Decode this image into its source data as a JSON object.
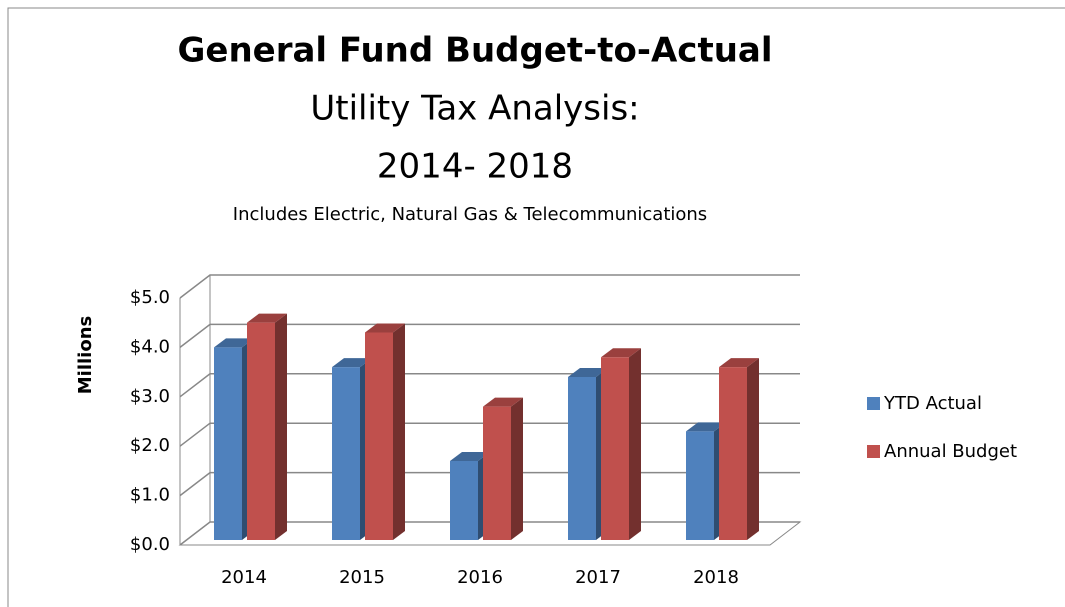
{
  "chart_data": {
    "type": "bar3d",
    "title": "General Fund Budget-to-Actual",
    "subtitle_lines": [
      "Utility Tax Analysis:",
      "2014- 2018"
    ],
    "note": "Includes Electric, Natural Gas & Telecommunications",
    "y_label": "Millions",
    "categories": [
      "2014",
      "2015",
      "2016",
      "2017",
      "2018"
    ],
    "series": [
      {
        "name": "YTD Actual",
        "color": "#4f81bd",
        "values": [
          3.9,
          3.5,
          1.6,
          3.3,
          2.2
        ]
      },
      {
        "name": "Annual Budget",
        "color": "#c0504d",
        "values": [
          4.4,
          4.2,
          2.7,
          3.7,
          3.5
        ]
      }
    ],
    "ylim": [
      0,
      5
    ],
    "yticks": [
      {
        "value": 0,
        "label": "$0.0"
      },
      {
        "value": 1,
        "label": "$1.0"
      },
      {
        "value": 2,
        "label": "$2.0"
      },
      {
        "value": 3,
        "label": "$3.0"
      },
      {
        "value": 4,
        "label": "$4.0"
      },
      {
        "value": 5,
        "label": "$5.0"
      }
    ],
    "grid": true,
    "legend": "right"
  }
}
